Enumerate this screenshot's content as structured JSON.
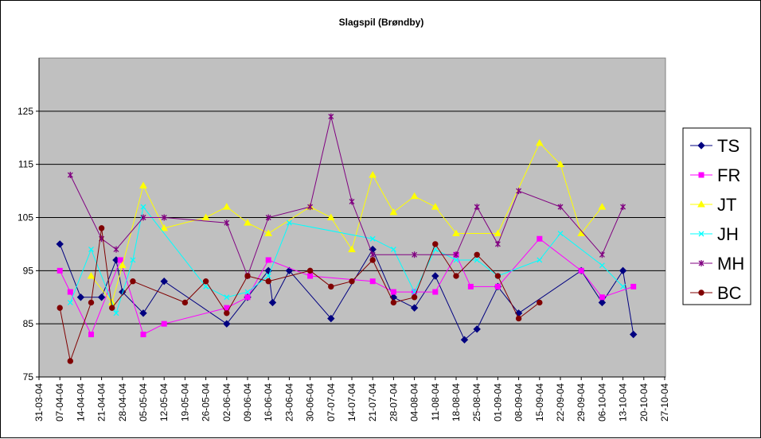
{
  "chart_data": {
    "type": "line",
    "title": "Slagspil (Brøndby)",
    "xlabel": "",
    "ylabel": "",
    "ylim": [
      75,
      135
    ],
    "yticks": [
      75,
      85,
      95,
      105,
      115,
      125
    ],
    "grid": "horizontal",
    "legend_position": "right",
    "background": "#c0c0c0",
    "x_labels": [
      "31-03-04",
      "07-04-04",
      "14-04-04",
      "21-04-04",
      "28-04-04",
      "05-05-04",
      "12-05-04",
      "19-05-04",
      "26-05-04",
      "02-06-04",
      "09-06-04",
      "16-06-04",
      "23-06-04",
      "30-06-04",
      "07-07-04",
      "14-07-04",
      "21-07-04",
      "28-07-04",
      "04-08-04",
      "11-08-04",
      "18-08-04",
      "25-08-04",
      "01-09-04",
      "08-09-04",
      "15-09-04",
      "22-09-04",
      "29-09-04",
      "06-10-04",
      "13-10-04",
      "20-10-04",
      "27-10-04"
    ],
    "series": [
      {
        "name": "TS",
        "color": "#000080",
        "marker": "diamond",
        "points": [
          [
            1,
            100
          ],
          [
            2,
            90
          ],
          [
            3,
            90
          ],
          [
            3.7,
            97
          ],
          [
            4,
            91
          ],
          [
            5,
            87
          ],
          [
            6,
            93
          ],
          [
            9,
            85
          ],
          [
            10,
            90
          ],
          [
            11,
            95
          ],
          [
            11.2,
            89
          ],
          [
            12,
            95
          ],
          [
            14,
            86
          ],
          [
            16,
            99
          ],
          [
            17,
            90
          ],
          [
            18,
            88
          ],
          [
            19,
            94
          ],
          [
            20.4,
            82
          ],
          [
            21,
            84
          ],
          [
            22,
            92
          ],
          [
            23,
            87
          ],
          [
            26,
            95
          ],
          [
            27,
            89
          ],
          [
            28,
            95
          ],
          [
            28.5,
            83
          ]
        ]
      },
      {
        "name": "FR",
        "color": "#ff00ff",
        "marker": "square",
        "points": [
          [
            1,
            95
          ],
          [
            1.5,
            91
          ],
          [
            2.5,
            83
          ],
          [
            3.9,
            97
          ],
          [
            5,
            83
          ],
          [
            6,
            85
          ],
          [
            9,
            88
          ],
          [
            10,
            90
          ],
          [
            11,
            97
          ],
          [
            13,
            94
          ],
          [
            16,
            93
          ],
          [
            17,
            91
          ],
          [
            18,
            91
          ],
          [
            19,
            91
          ],
          [
            20,
            98
          ],
          [
            20.7,
            92
          ],
          [
            22,
            92
          ],
          [
            24,
            101
          ],
          [
            26,
            95
          ],
          [
            27,
            90
          ],
          [
            28.5,
            92
          ]
        ]
      },
      {
        "name": "JT",
        "color": "#ffff00",
        "marker": "triangle",
        "points": [
          [
            2.5,
            94
          ],
          [
            3.5,
            89
          ],
          [
            4,
            96
          ],
          [
            5,
            111
          ],
          [
            6,
            103
          ],
          [
            8,
            105
          ],
          [
            9,
            107
          ],
          [
            10,
            104
          ],
          [
            11,
            102
          ],
          [
            13,
            107
          ],
          [
            14,
            105
          ],
          [
            15,
            99
          ],
          [
            16,
            113
          ],
          [
            17,
            106
          ],
          [
            18,
            109
          ],
          [
            19,
            107
          ],
          [
            20,
            102
          ],
          [
            22,
            102
          ],
          [
            24,
            119
          ],
          [
            25,
            115
          ],
          [
            26,
            102
          ],
          [
            27,
            107
          ]
        ]
      },
      {
        "name": "JH",
        "color": "#00ffff",
        "marker": "asterisk",
        "points": [
          [
            1.5,
            89
          ],
          [
            2.5,
            99
          ],
          [
            3.7,
            87
          ],
          [
            4.5,
            97
          ],
          [
            5,
            107
          ],
          [
            8,
            92
          ],
          [
            9,
            90
          ],
          [
            10,
            91
          ],
          [
            11,
            94
          ],
          [
            12,
            104
          ],
          [
            16,
            101
          ],
          [
            17,
            99
          ],
          [
            18,
            91
          ],
          [
            19,
            99
          ],
          [
            20,
            97
          ],
          [
            21,
            97
          ],
          [
            22,
            94
          ],
          [
            24,
            97
          ],
          [
            25,
            102
          ],
          [
            27,
            96
          ],
          [
            28,
            92
          ]
        ]
      },
      {
        "name": "MH",
        "color": "#800080",
        "marker": "star",
        "points": [
          [
            1.5,
            113
          ],
          [
            3,
            101
          ],
          [
            3.7,
            99
          ],
          [
            5,
            105
          ],
          [
            6,
            105
          ],
          [
            9,
            104
          ],
          [
            10,
            94
          ],
          [
            11,
            105
          ],
          [
            13,
            107
          ],
          [
            14,
            124
          ],
          [
            15,
            108
          ],
          [
            16,
            98
          ],
          [
            18,
            98
          ],
          [
            20,
            98
          ],
          [
            21,
            107
          ],
          [
            22,
            100
          ],
          [
            23,
            110
          ],
          [
            25,
            107
          ],
          [
            27,
            98
          ],
          [
            28,
            107
          ]
        ]
      },
      {
        "name": "BC",
        "color": "#800000",
        "marker": "circle",
        "points": [
          [
            1,
            88
          ],
          [
            1.5,
            78
          ],
          [
            2.5,
            89
          ],
          [
            3,
            103
          ],
          [
            3.5,
            88
          ],
          [
            4.5,
            93
          ],
          [
            7,
            89
          ],
          [
            8,
            93
          ],
          [
            9,
            87
          ],
          [
            10,
            94
          ],
          [
            11,
            93
          ],
          [
            13,
            95
          ],
          [
            14,
            92
          ],
          [
            15,
            93
          ],
          [
            16,
            97
          ],
          [
            17,
            89
          ],
          [
            18,
            90
          ],
          [
            19,
            100
          ],
          [
            20,
            94
          ],
          [
            21,
            98
          ],
          [
            22,
            94
          ],
          [
            23,
            86
          ],
          [
            24,
            89
          ]
        ]
      }
    ]
  }
}
